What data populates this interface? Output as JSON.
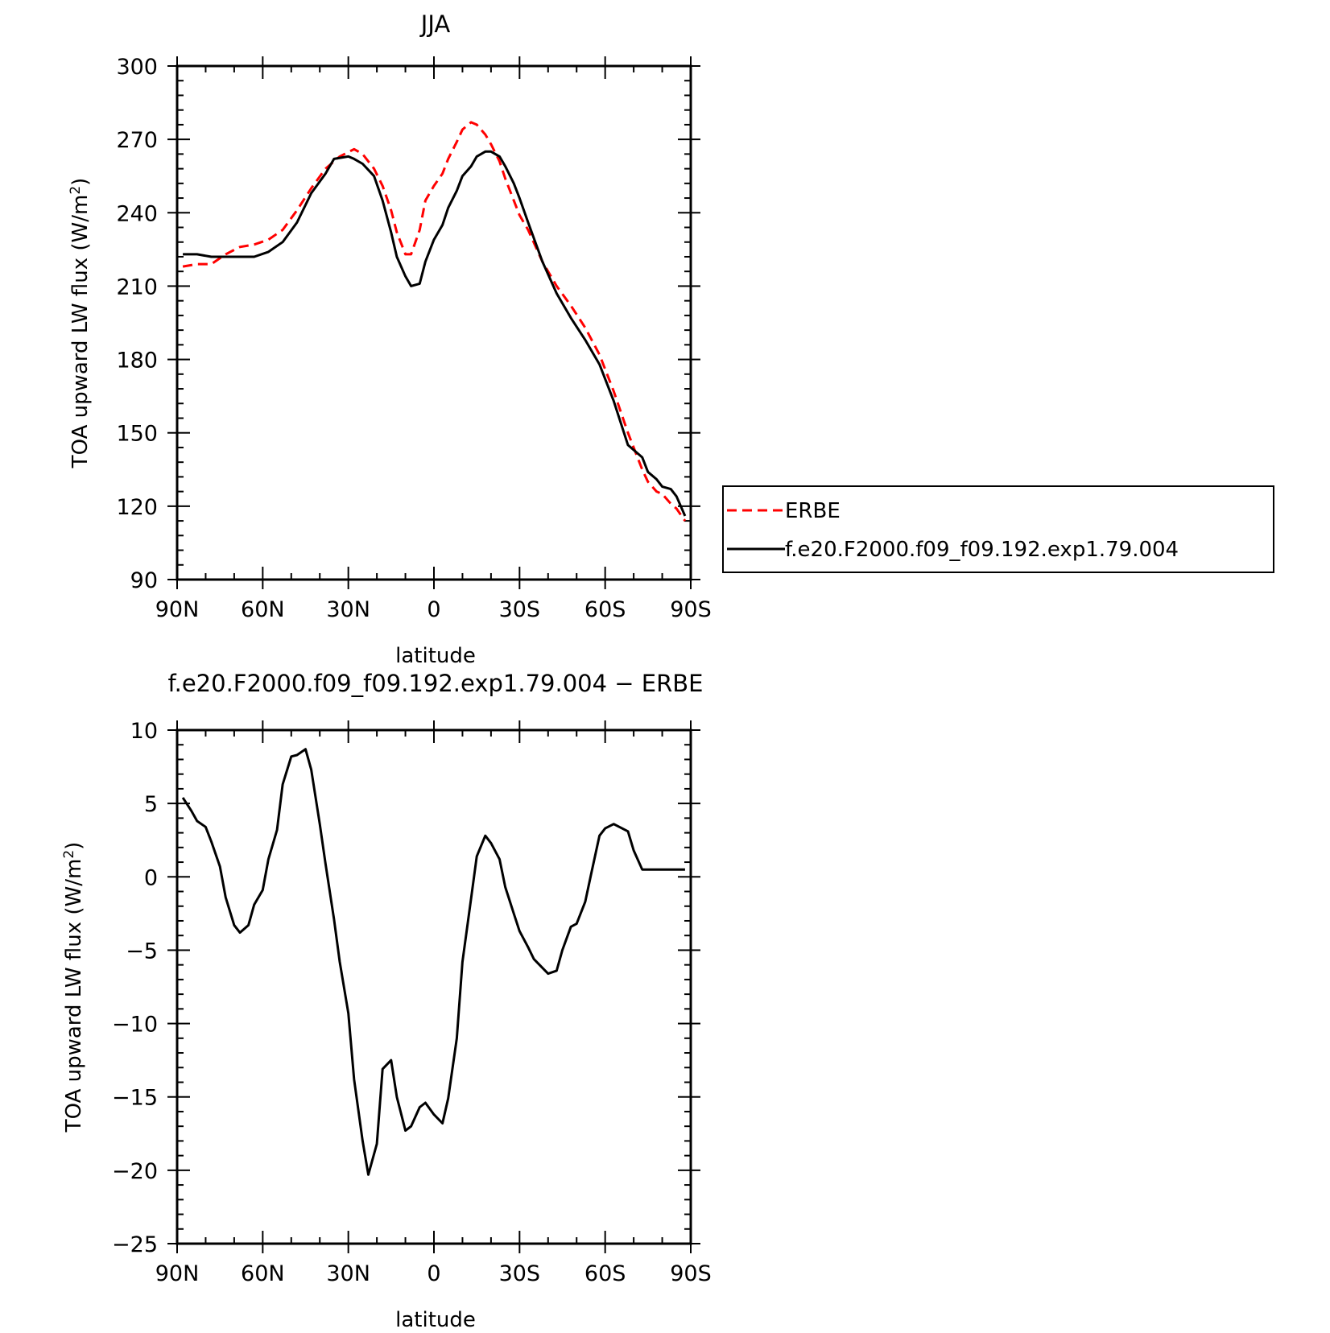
{
  "chart_data": [
    {
      "type": "line",
      "title": "JJA",
      "xlabel": "latitude",
      "ylabel": "TOA upward LW flux (W/m²)",
      "ylabel_main": "TOA upward LW flux (W/m",
      "ylabel_sup": "2",
      "ylabel_close": ")",
      "xlim": [
        90,
        -90
      ],
      "ylim": [
        90,
        300
      ],
      "x_ticks": [
        90,
        60,
        30,
        0,
        -30,
        -60,
        -90
      ],
      "x_tick_labels": [
        "90N",
        "60N",
        "30N",
        "0",
        "30S",
        "60S",
        "90S"
      ],
      "y_ticks": [
        90,
        120,
        150,
        180,
        210,
        240,
        270,
        300
      ],
      "y_tick_labels": [
        "90",
        "120",
        "150",
        "180",
        "210",
        "240",
        "270",
        "300"
      ],
      "legend": {
        "position": "right",
        "entries": [
          "ERBE",
          "f.e20.F2000.f09_f09.192.exp1.79.004"
        ]
      },
      "series": [
        {
          "name": "ERBE",
          "color": "#ff0000",
          "dash": "dashed",
          "x": [
            88,
            83,
            78,
            73,
            68,
            63,
            58,
            53,
            48,
            43,
            38,
            33,
            28,
            25,
            21,
            18,
            15,
            13,
            10,
            8,
            5,
            3,
            0,
            -3,
            -5,
            -8,
            -10,
            -13,
            -15,
            -18,
            -20,
            -23,
            -25,
            -28,
            -30,
            -33,
            -38,
            -43,
            -48,
            -53,
            -58,
            -63,
            -68,
            -73,
            -75,
            -78,
            -80,
            -83,
            -85,
            -88
          ],
          "y": [
            218,
            219,
            219,
            223,
            226,
            227,
            229,
            233,
            241,
            250,
            258,
            263,
            266,
            264,
            258,
            251,
            241,
            232,
            223,
            223,
            233,
            245,
            251,
            256,
            262,
            269,
            274,
            277,
            276,
            272,
            268,
            261,
            254,
            245,
            239,
            233,
            220,
            210,
            202,
            193,
            182,
            167,
            150,
            135,
            130,
            126,
            125,
            121,
            119,
            114
          ]
        },
        {
          "name": "f.e20.F2000.f09_f09.192.exp1.79.004",
          "color": "#000000",
          "dash": "solid",
          "x": [
            88,
            83,
            78,
            73,
            68,
            63,
            58,
            53,
            48,
            43,
            38,
            35,
            30,
            28,
            25,
            21,
            18,
            15,
            13,
            10,
            8,
            5,
            3,
            0,
            -3,
            -5,
            -8,
            -10,
            -13,
            -15,
            -18,
            -20,
            -23,
            -25,
            -28,
            -30,
            -33,
            -38,
            -43,
            -48,
            -53,
            -58,
            -63,
            -68,
            -73,
            -75,
            -78,
            -80,
            -83,
            -85,
            -88
          ],
          "y": [
            223,
            223,
            222,
            222,
            222,
            222,
            224,
            228,
            236,
            248,
            256,
            262,
            263,
            262,
            260,
            255,
            245,
            232,
            222,
            214,
            210,
            211,
            220,
            229,
            235,
            242,
            249,
            255,
            259,
            263,
            265,
            265,
            263,
            259,
            252,
            246,
            236,
            220,
            207,
            197,
            188,
            178,
            163,
            145,
            140,
            134,
            131,
            128,
            127,
            124,
            116
          ]
        }
      ]
    },
    {
      "type": "line",
      "title": "f.e20.F2000.f09_f09.192.exp1.79.004 − ERBE",
      "xlabel": "latitude",
      "ylabel": "TOA upward LW flux (W/m²)",
      "ylabel_main": "TOA upward LW flux (W/m",
      "ylabel_sup": "2",
      "ylabel_close": ")",
      "xlim": [
        90,
        -90
      ],
      "ylim": [
        -25,
        10
      ],
      "x_ticks": [
        90,
        60,
        30,
        0,
        -30,
        -60,
        -90
      ],
      "x_tick_labels": [
        "90N",
        "60N",
        "30N",
        "0",
        "30S",
        "60S",
        "90S"
      ],
      "y_ticks": [
        -25,
        -20,
        -15,
        -10,
        -5,
        0,
        5,
        10
      ],
      "y_tick_labels": [
        "−25",
        "−20",
        "−15",
        "−10",
        "−5",
        "0",
        "5",
        "10"
      ],
      "series": [
        {
          "color": "#000000",
          "dash": "solid",
          "x": [
            88,
            85,
            83,
            80,
            78,
            75,
            73,
            70,
            68,
            65,
            63,
            60,
            58,
            55,
            53,
            50,
            48,
            45,
            43,
            40,
            38,
            35,
            33,
            30,
            28,
            25,
            23,
            20,
            18,
            15,
            13,
            10,
            8,
            5,
            3,
            0,
            -3,
            -5,
            -8,
            -10,
            -13,
            -15,
            -18,
            -20,
            -23,
            -25,
            -28,
            -30,
            -33,
            -35,
            -38,
            -40,
            -43,
            -45,
            -48,
            -50,
            -53,
            -55,
            -58,
            -60,
            -63,
            -68,
            -70,
            -73,
            -75,
            -78,
            -80,
            -83,
            -85,
            -88
          ],
          "y": [
            5.4,
            4.5,
            3.8,
            3.4,
            2.4,
            0.7,
            -1.4,
            -3.3,
            -3.8,
            -3.3,
            -1.9,
            -0.9,
            1.2,
            3.2,
            6.3,
            8.2,
            8.3,
            8.7,
            7.3,
            3.6,
            0.9,
            -2.9,
            -5.8,
            -9.3,
            -13.8,
            -18.0,
            -20.3,
            -18.2,
            -13.1,
            -12.5,
            -15.0,
            -17.3,
            -17.0,
            -15.7,
            -15.4,
            -16.2,
            -16.8,
            -15.1,
            -11.0,
            -5.8,
            -1.5,
            1.4,
            2.8,
            2.3,
            1.2,
            -0.7,
            -2.5,
            -3.7,
            -4.8,
            -5.6,
            -6.2,
            -6.6,
            -6.4,
            -5.0,
            -3.4,
            -3.2,
            -1.7,
            0.1,
            2.8,
            3.3,
            3.6,
            3.1,
            1.8,
            0.5,
            0.5,
            0.5,
            0.5,
            0.5,
            0.5,
            0.5
          ]
        }
      ]
    }
  ]
}
